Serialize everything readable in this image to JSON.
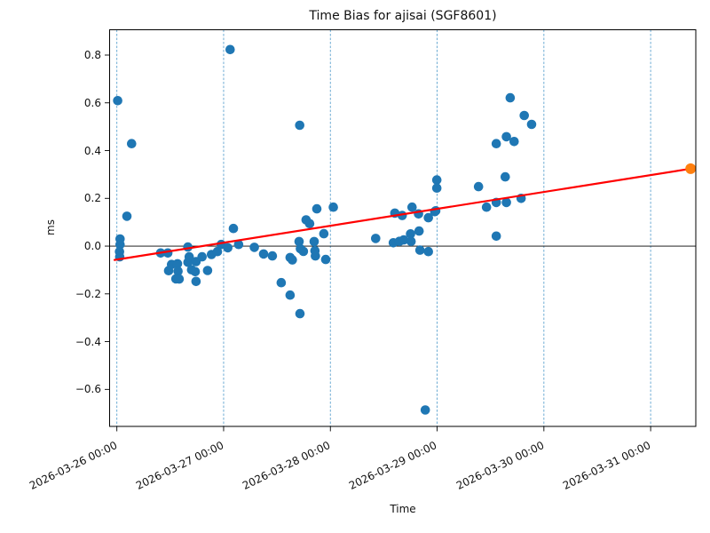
{
  "title": "Time Bias for ajisai (SGF8601)",
  "chart_data": {
    "type": "scatter",
    "title": "Time Bias for ajisai (SGF8601)",
    "xlabel": "Time",
    "ylabel": "ms",
    "x_unit": "days since 2026-03-26 00:00",
    "xlim": [
      -0.068,
      5.423
    ],
    "ylim": [
      -0.755,
      0.906
    ],
    "grid": {
      "vertical_dashed": true,
      "color": "#5fa3cf"
    },
    "zero_line": {
      "value": 0.0,
      "color": "#000000"
    },
    "x_ticks": [
      {
        "days": 0,
        "label": "2026-03-26 00:00"
      },
      {
        "days": 1,
        "label": "2026-03-27 00:00"
      },
      {
        "days": 2,
        "label": "2026-03-28 00:00"
      },
      {
        "days": 3,
        "label": "2026-03-29 00:00"
      },
      {
        "days": 4,
        "label": "2026-03-30 00:00"
      },
      {
        "days": 5,
        "label": "2026-03-31 00:00"
      }
    ],
    "y_ticks": [
      {
        "value": -0.6,
        "label": "−0.6"
      },
      {
        "value": -0.4,
        "label": "−0.4"
      },
      {
        "value": -0.2,
        "label": "−0.2"
      },
      {
        "value": 0.0,
        "label": "0.0"
      },
      {
        "value": 0.2,
        "label": "0.2"
      },
      {
        "value": 0.4,
        "label": "0.4"
      },
      {
        "value": 0.6,
        "label": "0.6"
      },
      {
        "value": 0.8,
        "label": "0.8"
      }
    ],
    "series": [
      {
        "name": "time-bias-observations",
        "type": "scatter",
        "color": "#1f77b4",
        "marker_radius": 5.3,
        "points_days_ms": [
          [
            0.008,
            0.609
          ],
          [
            0.03,
            0.03
          ],
          [
            0.03,
            0.007
          ],
          [
            0.025,
            -0.023
          ],
          [
            0.027,
            -0.045
          ],
          [
            0.094,
            0.125
          ],
          [
            0.138,
            0.429
          ],
          [
            0.41,
            -0.029
          ],
          [
            0.477,
            -0.029
          ],
          [
            0.485,
            -0.103
          ],
          [
            0.512,
            -0.077
          ],
          [
            0.553,
            -0.137
          ],
          [
            0.568,
            -0.074
          ],
          [
            0.573,
            -0.105
          ],
          [
            0.584,
            -0.138
          ],
          [
            0.665,
            -0.004
          ],
          [
            0.666,
            -0.068
          ],
          [
            0.678,
            -0.045
          ],
          [
            0.7,
            -0.099
          ],
          [
            0.734,
            -0.107
          ],
          [
            0.742,
            -0.065
          ],
          [
            0.742,
            -0.148
          ],
          [
            0.798,
            -0.045
          ],
          [
            0.85,
            -0.102
          ],
          [
            0.886,
            -0.035
          ],
          [
            0.942,
            -0.023
          ],
          [
            0.978,
            0.007
          ],
          [
            1.039,
            -0.007
          ],
          [
            1.061,
            0.823
          ],
          [
            1.092,
            0.074
          ],
          [
            1.141,
            0.007
          ],
          [
            1.288,
            -0.005
          ],
          [
            1.374,
            -0.033
          ],
          [
            1.457,
            -0.041
          ],
          [
            1.54,
            -0.153
          ],
          [
            1.623,
            -0.048
          ],
          [
            1.644,
            -0.058
          ],
          [
            1.623,
            -0.205
          ],
          [
            1.715,
            -0.283
          ],
          [
            1.713,
            0.506
          ],
          [
            1.707,
            0.019
          ],
          [
            1.719,
            -0.011
          ],
          [
            1.748,
            -0.022
          ],
          [
            1.773,
            0.11
          ],
          [
            1.806,
            0.094
          ],
          [
            1.848,
            0.019
          ],
          [
            1.856,
            -0.019
          ],
          [
            1.86,
            -0.041
          ],
          [
            1.873,
            0.156
          ],
          [
            1.939,
            0.052
          ],
          [
            1.956,
            -0.056
          ],
          [
            2.028,
            0.163
          ],
          [
            2.424,
            0.032
          ],
          [
            2.59,
            0.014
          ],
          [
            2.604,
            0.138
          ],
          [
            2.646,
            0.02
          ],
          [
            2.673,
            0.128
          ],
          [
            2.687,
            0.026
          ],
          [
            2.751,
            0.051
          ],
          [
            2.756,
            0.02
          ],
          [
            2.765,
            0.163
          ],
          [
            2.826,
            0.135
          ],
          [
            2.831,
            0.063
          ],
          [
            2.839,
            -0.017
          ],
          [
            2.889,
            -0.686
          ],
          [
            2.918,
            0.119
          ],
          [
            2.918,
            -0.023
          ],
          [
            2.978,
            0.144
          ],
          [
            2.987,
            0.148
          ],
          [
            2.997,
            0.277
          ],
          [
            2.997,
            0.243
          ],
          [
            3.388,
            0.249
          ],
          [
            3.463,
            0.163
          ],
          [
            3.554,
            0.042
          ],
          [
            3.554,
            0.183
          ],
          [
            3.554,
            0.429
          ],
          [
            3.638,
            0.29
          ],
          [
            3.649,
            0.183
          ],
          [
            3.649,
            0.458
          ],
          [
            3.685,
            0.621
          ],
          [
            3.721,
            0.438
          ],
          [
            3.787,
            0.2
          ],
          [
            3.816,
            0.547
          ],
          [
            3.885,
            0.51
          ]
        ]
      },
      {
        "name": "trend-fit-line",
        "type": "line",
        "color": "#ff0000",
        "width": 2.2,
        "points_days_ms": [
          [
            -0.022,
            -0.058
          ],
          [
            5.375,
            0.324
          ]
        ]
      },
      {
        "name": "predicted-bias-point",
        "type": "scatter",
        "color": "#ff7f0e",
        "marker_radius": 6,
        "points_days_ms": [
          [
            5.375,
            0.324
          ]
        ]
      }
    ]
  }
}
